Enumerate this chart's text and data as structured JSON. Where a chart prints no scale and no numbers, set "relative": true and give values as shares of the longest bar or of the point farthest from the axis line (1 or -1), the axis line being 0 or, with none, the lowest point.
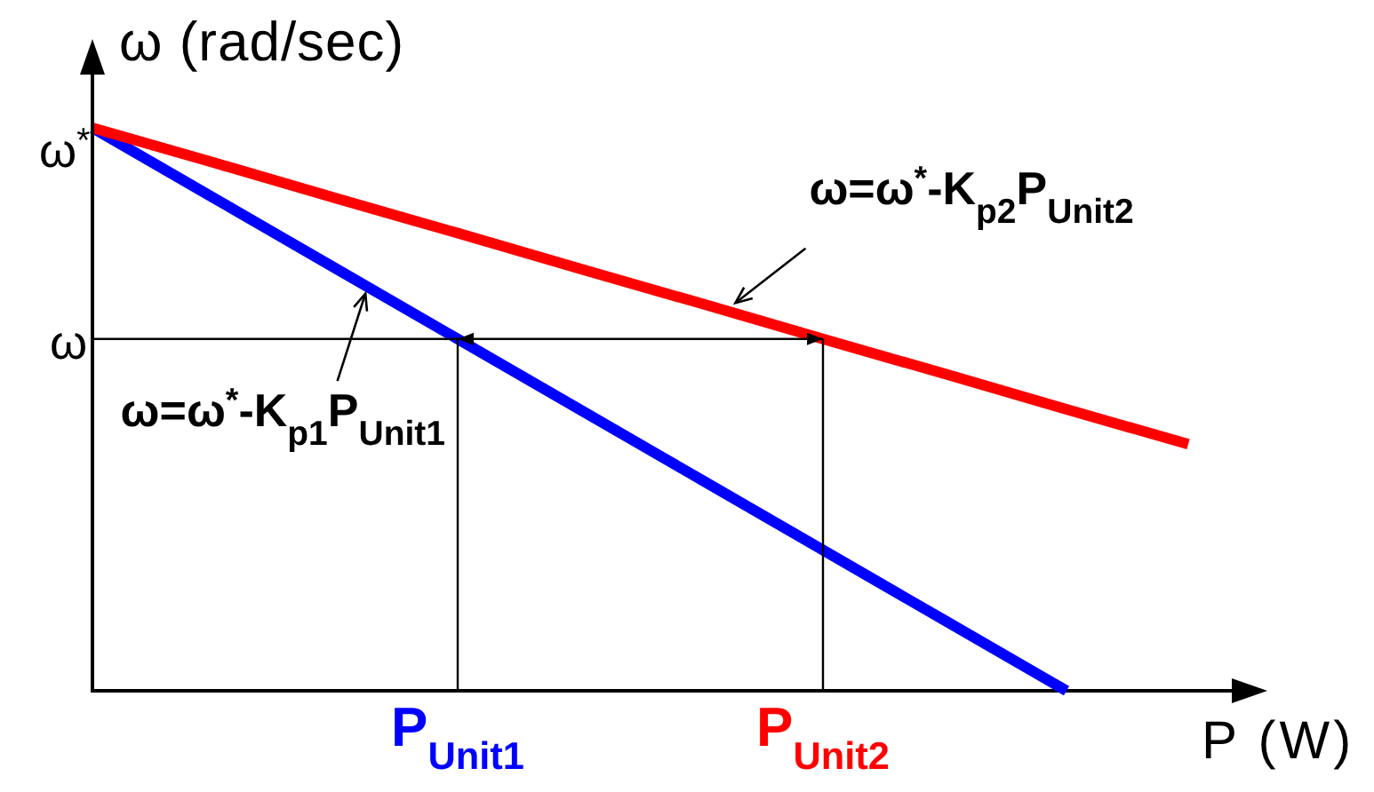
{
  "chart_data": {
    "type": "line",
    "relative": true,
    "xlabel": "P (W)",
    "ylabel": "ω (rad/sec)",
    "categories": [
      null,
      null,
      null,
      "P$_{Unit1}$",
      null,
      null,
      "P$_{Unit2}$",
      null,
      null,
      null
    ],
    "series": [
      {
        "color": "#ff0000",
        "values": [
          1,
          0.938,
          0.875,
          0.813,
          0.75,
          0.688,
          0.625,
          0.563,
          0.5,
          0.438
        ]
      },
      {
        "color": "#0000ff",
        "values": [
          1,
          0.875,
          0.75,
          0.625,
          0.5,
          0.375,
          0.25,
          0.125,
          0,
          null
        ]
      }
    ],
    "ref_lines": [
      {
        "axis": "y",
        "value": 0.625,
        "label": "ω"
      },
      {
        "axis": "x",
        "value": "P$_{Unit1}$"
      },
      {
        "axis": "x",
        "value": "P$_{Unit2}$"
      }
    ],
    "annotations": [
      "ω$^{*}$",
      "ω=ω$^{*}$-K$_{p2}$P$_{Unit2}$",
      "ω=ω$^{*}$-K$_{p1}$P$_{Unit1}$"
    ]
  }
}
